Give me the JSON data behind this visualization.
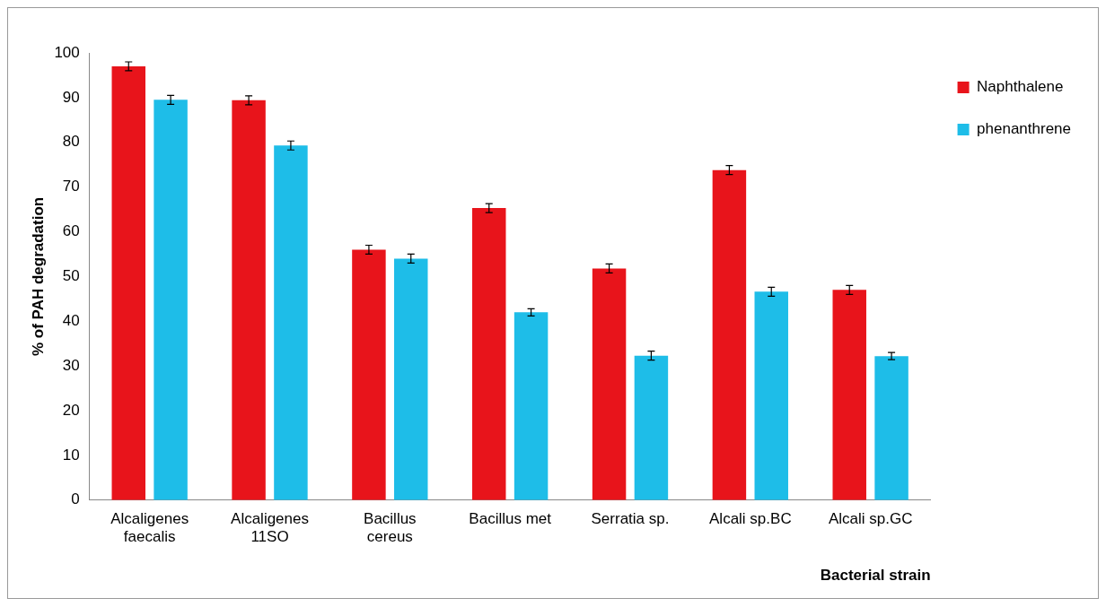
{
  "chart_data": {
    "type": "bar",
    "xlabel": "Bacterial strain",
    "ylabel": "% of PAH degradation",
    "categories": [
      "Alcaligenes faecalis",
      "Alcaligenes 11SO",
      "Bacillus cereus",
      "Bacillus met",
      "Serratia sp.",
      "Alcali sp.BC",
      "Alcali sp.GC"
    ],
    "series": [
      {
        "name": "Naphthalene",
        "color": "#e8141b",
        "values": [
          97,
          89.4,
          56,
          65.3,
          51.8,
          73.8,
          47
        ],
        "errors": [
          1,
          1,
          1,
          1,
          1,
          1,
          1
        ]
      },
      {
        "name": "phenanthrene",
        "color": "#1ebde8",
        "values": [
          89.5,
          79.3,
          54,
          42,
          32.3,
          46.6,
          32.2
        ],
        "errors": [
          1,
          1,
          1,
          0.8,
          1,
          1,
          0.8
        ]
      }
    ],
    "ylim": [
      0,
      100
    ],
    "yticks": [
      0,
      10,
      20,
      30,
      40,
      50,
      60,
      70,
      80,
      90,
      100
    ],
    "grid": false,
    "legend": "top right"
  }
}
